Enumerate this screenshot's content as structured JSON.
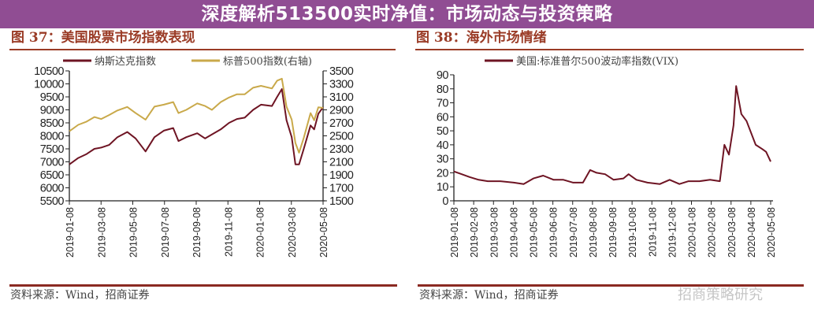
{
  "colors": {
    "nasdaq": "#6e1423",
    "sp500": "#c9a94a",
    "vix": "#6e1423",
    "title": "#9a3b26",
    "banner": "#873e8a"
  },
  "banner": {
    "text": "深度解析513500实时净值：市场动态与投资策略"
  },
  "watermark": {
    "text": "招商策略研究"
  },
  "chart_data": [
    {
      "type": "line",
      "title": "图 37：美国股票市场指数表现",
      "source": "资料来源：Wind，招商证券",
      "x_ticks": [
        "2019-01-08",
        "2019-03-08",
        "2019-05-08",
        "2019-07-08",
        "2019-09-08",
        "2019-11-08",
        "2020-01-08",
        "2020-03-08",
        "2020-05-08"
      ],
      "y_left": {
        "ylim": [
          5500,
          10500
        ],
        "ticks": [
          "10500",
          "10000",
          "9500",
          "9000",
          "8500",
          "8000",
          "7500",
          "7000",
          "6500",
          "6000",
          "5500"
        ]
      },
      "y_right": {
        "ylim": [
          1500,
          3500
        ],
        "ticks": [
          "3500",
          "3300",
          "3100",
          "2900",
          "2700",
          "2500",
          "2300",
          "2100",
          "1900",
          "1700",
          "1500"
        ]
      },
      "grid": false,
      "legend_position": "top",
      "x": [
        "2019-01-08",
        "2019-01-25",
        "2019-02-10",
        "2019-02-25",
        "2019-03-10",
        "2019-03-25",
        "2019-04-10",
        "2019-04-29",
        "2019-05-15",
        "2019-06-03",
        "2019-06-20",
        "2019-07-08",
        "2019-07-26",
        "2019-08-05",
        "2019-08-20",
        "2019-09-10",
        "2019-09-25",
        "2019-10-08",
        "2019-10-25",
        "2019-11-10",
        "2019-11-25",
        "2019-12-10",
        "2019-12-26",
        "2020-01-10",
        "2020-01-31",
        "2020-02-10",
        "2020-02-19",
        "2020-02-28",
        "2020-03-09",
        "2020-03-16",
        "2020-03-23",
        "2020-04-01",
        "2020-04-14",
        "2020-04-21",
        "2020-04-29",
        "2020-05-08"
      ],
      "series": [
        {
          "name": "纳斯达克指数",
          "axis": "left",
          "values": [
            6900,
            7150,
            7300,
            7500,
            7550,
            7650,
            7950,
            8150,
            7900,
            7400,
            7950,
            8200,
            8300,
            7800,
            7950,
            8100,
            7900,
            8050,
            8250,
            8500,
            8650,
            8700,
            9000,
            9200,
            9150,
            9500,
            9800,
            8600,
            7950,
            6900,
            6900,
            7500,
            8400,
            8250,
            8850,
            9100
          ]
        },
        {
          "name": "标普500指数(右轴)",
          "axis": "right",
          "values": [
            2570,
            2670,
            2720,
            2790,
            2760,
            2820,
            2890,
            2945,
            2850,
            2750,
            2950,
            2980,
            3020,
            2850,
            2900,
            3000,
            2960,
            2900,
            3020,
            3090,
            3140,
            3140,
            3240,
            3270,
            3230,
            3350,
            3380,
            2950,
            2750,
            2390,
            2240,
            2470,
            2850,
            2740,
            2940,
            2930
          ]
        }
      ]
    },
    {
      "type": "line",
      "title": "图 38：海外市场情绪",
      "source": "资料来源：Wind，招商证券",
      "x_ticks": [
        "2019-01-08",
        "2019-02-08",
        "2019-03-08",
        "2019-04-08",
        "2019-05-08",
        "2019-06-08",
        "2019-07-08",
        "2019-08-08",
        "2019-09-08",
        "2019-10-08",
        "2019-11-08",
        "2019-12-08",
        "2020-01-08",
        "2020-02-08",
        "2020-03-08",
        "2020-04-08",
        "2020-05-08"
      ],
      "y": {
        "ylim": [
          0,
          90
        ],
        "ticks": [
          "90",
          "80",
          "70",
          "60",
          "50",
          "40",
          "30",
          "20",
          "10",
          "0"
        ]
      },
      "grid": false,
      "legend_position": "top",
      "x": [
        "2019-01-08",
        "2019-01-20",
        "2019-02-01",
        "2019-02-15",
        "2019-03-01",
        "2019-03-20",
        "2019-04-10",
        "2019-04-25",
        "2019-05-10",
        "2019-05-25",
        "2019-06-10",
        "2019-06-25",
        "2019-07-10",
        "2019-07-25",
        "2019-08-05",
        "2019-08-15",
        "2019-08-28",
        "2019-09-10",
        "2019-09-25",
        "2019-10-03",
        "2019-10-15",
        "2019-11-01",
        "2019-11-20",
        "2019-12-05",
        "2019-12-20",
        "2020-01-03",
        "2020-01-20",
        "2020-02-05",
        "2020-02-20",
        "2020-02-27",
        "2020-03-05",
        "2020-03-12",
        "2020-03-16",
        "2020-03-24",
        "2020-04-01",
        "2020-04-15",
        "2020-04-25",
        "2020-05-01",
        "2020-05-08"
      ],
      "series": [
        {
          "name": "美国:标准普尔500波动率指数(VIX)",
          "values": [
            21,
            19,
            17,
            15,
            14,
            14,
            13,
            12,
            16,
            18,
            15,
            15,
            13,
            13,
            22,
            20,
            19,
            15,
            16,
            19,
            15,
            13,
            12,
            15,
            12,
            14,
            14,
            15,
            14,
            40,
            33,
            54,
            82,
            62,
            57,
            40,
            37,
            35,
            28
          ]
        }
      ]
    }
  ]
}
